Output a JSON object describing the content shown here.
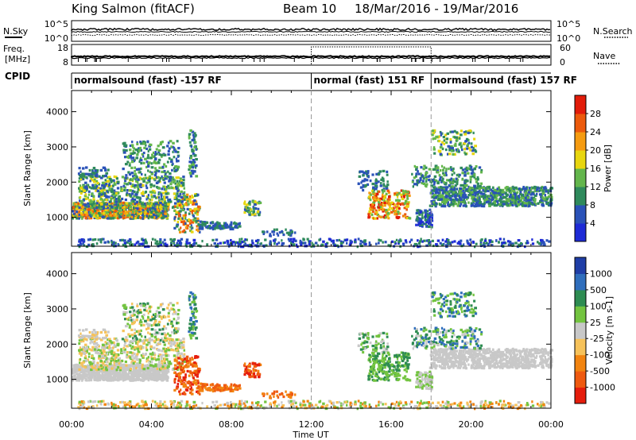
{
  "header": {
    "station": "King Salmon (fitACF)",
    "beam": "Beam 10",
    "dates": "18/Mar/2016 - 19/Mar/2016"
  },
  "strip_labels": {
    "nsky": "N.Sky",
    "nsearch": "N.Search",
    "freq": "Freq.",
    "mhz": "[MHz]",
    "nave": "Nave",
    "cpid": "CPID"
  },
  "strip_ticks": {
    "noise_left": [
      "10^5",
      "10^0"
    ],
    "noise_right": [
      "10^5",
      "10^0"
    ],
    "freq_left": [
      "18",
      "8"
    ],
    "nave_right": [
      "60",
      "0"
    ]
  },
  "cpid_segments": [
    {
      "label": "normalsound (fast) -157 RF",
      "start_h": 0,
      "end_h": 12
    },
    {
      "label": "normal (fast) 151 RF",
      "start_h": 12,
      "end_h": 18
    },
    {
      "label": "normalsound (fast) 157 RF",
      "start_h": 18,
      "end_h": 24
    }
  ],
  "chart_data": [
    {
      "type": "heatmap",
      "quantity": "power",
      "ylabel": "Slant Range [km]",
      "xlabel": "",
      "x_range_hours": [
        0,
        24
      ],
      "ylim": [
        180,
        4600
      ],
      "yticks": [
        1000,
        2000,
        3000,
        4000
      ],
      "colorbar": {
        "label": "Power [dB]",
        "ticks": [
          "4",
          "8",
          "12",
          "16",
          "20",
          "24",
          "28"
        ],
        "colors": [
          "#1e2bd6",
          "#2a52b8",
          "#2f8a5c",
          "#63b64c",
          "#e8d60f",
          "#f59b10",
          "#ec5a0c",
          "#e21c0a"
        ]
      }
    },
    {
      "type": "heatmap",
      "quantity": "velocity",
      "ylabel": "Slant Range [km]",
      "xlabel": "Time UT",
      "x_range_hours": [
        0,
        24
      ],
      "xticks": [
        "00:00",
        "04:00",
        "08:00",
        "12:00",
        "16:00",
        "20:00",
        "00:00"
      ],
      "ylim": [
        180,
        4600
      ],
      "yticks": [
        1000,
        2000,
        3000,
        4000
      ],
      "colorbar": {
        "label": "Velocity [m s-1]",
        "ticks": [
          "1000",
          "500",
          "100",
          "25",
          "-25",
          "-100",
          "-500",
          "-1000"
        ],
        "colors": [
          "#1f3ea6",
          "#2f6ebc",
          "#2e8c52",
          "#73c440",
          "#c8c8c8",
          "#f6c25a",
          "#f28410",
          "#ef5a10",
          "#e51d0c"
        ]
      }
    }
  ]
}
